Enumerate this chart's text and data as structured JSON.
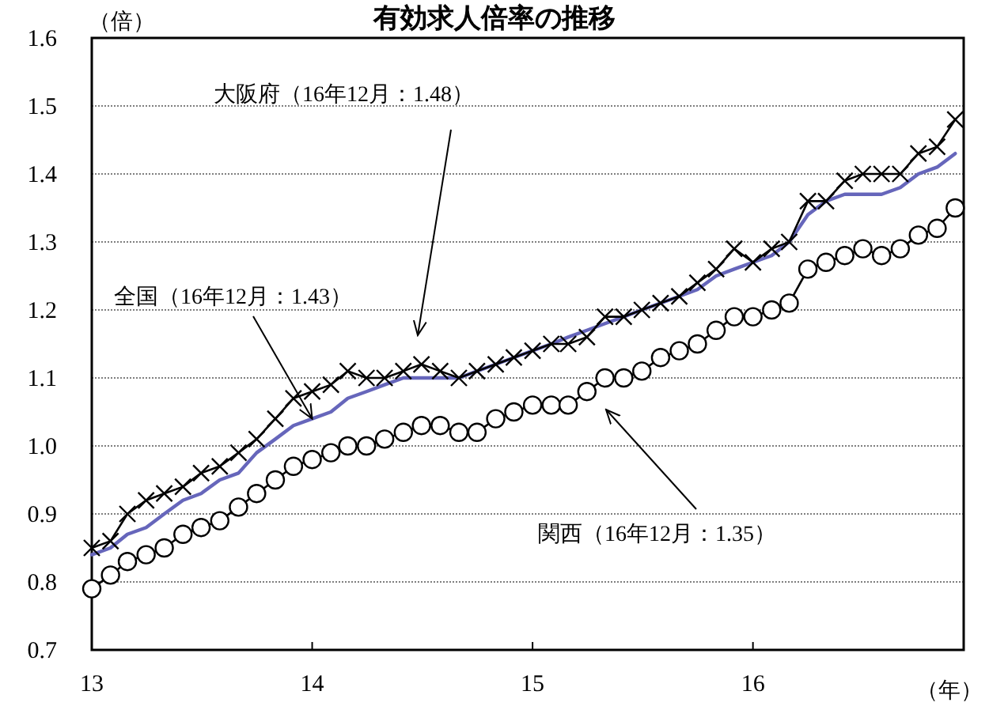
{
  "chart_data": {
    "type": "line",
    "title": "有効求人倍率の推移",
    "ylabel": "（倍）",
    "xlabel": "（年）",
    "x": [
      "2013-01",
      "2013-02",
      "2013-03",
      "2013-04",
      "2013-05",
      "2013-06",
      "2013-07",
      "2013-08",
      "2013-09",
      "2013-10",
      "2013-11",
      "2013-12",
      "2014-01",
      "2014-02",
      "2014-03",
      "2014-04",
      "2014-05",
      "2014-06",
      "2014-07",
      "2014-08",
      "2014-09",
      "2014-10",
      "2014-11",
      "2014-12",
      "2015-01",
      "2015-02",
      "2015-03",
      "2015-04",
      "2015-05",
      "2015-06",
      "2015-07",
      "2015-08",
      "2015-09",
      "2015-10",
      "2015-11",
      "2015-12",
      "2016-01",
      "2016-02",
      "2016-03",
      "2016-04",
      "2016-05",
      "2016-06",
      "2016-07",
      "2016-08",
      "2016-09",
      "2016-10",
      "2016-11",
      "2016-12"
    ],
    "series": [
      {
        "color": "#000000",
        "marker": "cross",
        "values": [
          0.85,
          0.86,
          0.9,
          0.92,
          0.93,
          0.94,
          0.96,
          0.97,
          0.99,
          1.01,
          1.04,
          1.07,
          1.08,
          1.09,
          1.11,
          1.1,
          1.1,
          1.11,
          1.12,
          1.11,
          1.1,
          1.11,
          1.12,
          1.13,
          1.14,
          1.15,
          1.15,
          1.16,
          1.19,
          1.19,
          1.2,
          1.21,
          1.22,
          1.24,
          1.26,
          1.29,
          1.27,
          1.29,
          1.3,
          1.36,
          1.36,
          1.39,
          1.4,
          1.4,
          1.4,
          1.43,
          1.44,
          1.48
        ]
      },
      {
        "color": "#6666bb",
        "marker": "none",
        "values": [
          0.84,
          0.85,
          0.87,
          0.88,
          0.9,
          0.92,
          0.93,
          0.95,
          0.96,
          0.99,
          1.01,
          1.03,
          1.04,
          1.05,
          1.07,
          1.08,
          1.09,
          1.1,
          1.1,
          1.1,
          1.1,
          1.11,
          1.12,
          1.13,
          1.14,
          1.15,
          1.16,
          1.17,
          1.18,
          1.19,
          1.2,
          1.21,
          1.22,
          1.23,
          1.25,
          1.26,
          1.27,
          1.28,
          1.3,
          1.34,
          1.36,
          1.37,
          1.37,
          1.37,
          1.38,
          1.4,
          1.41,
          1.43
        ]
      },
      {
        "color": "#000000",
        "marker": "circle",
        "values": [
          0.79,
          0.81,
          0.83,
          0.84,
          0.85,
          0.87,
          0.88,
          0.89,
          0.91,
          0.93,
          0.95,
          0.97,
          0.98,
          0.99,
          1.0,
          1.0,
          1.01,
          1.02,
          1.03,
          1.03,
          1.02,
          1.02,
          1.04,
          1.05,
          1.06,
          1.06,
          1.06,
          1.08,
          1.1,
          1.1,
          1.11,
          1.13,
          1.14,
          1.15,
          1.17,
          1.19,
          1.19,
          1.2,
          1.21,
          1.26,
          1.27,
          1.28,
          1.29,
          1.28,
          1.29,
          1.31,
          1.32,
          1.35
        ]
      }
    ],
    "xlim": [
      "2013-01",
      "2016-12-15"
    ],
    "xticks": [
      {
        "value": "2013-01",
        "label": "13"
      },
      {
        "value": "2014-01",
        "label": "14"
      },
      {
        "value": "2015-01",
        "label": "15"
      },
      {
        "value": "2016-01",
        "label": "16"
      }
    ],
    "ylim": [
      0.7,
      1.6
    ],
    "yticks": [
      {
        "value": 0.7,
        "label": "0.7"
      },
      {
        "value": 0.8,
        "label": "0.8"
      },
      {
        "value": 0.9,
        "label": "0.9"
      },
      {
        "value": 1.0,
        "label": "1.0"
      },
      {
        "value": 1.1,
        "label": "1.1"
      },
      {
        "value": 1.2,
        "label": "1.2"
      },
      {
        "value": 1.3,
        "label": "1.3"
      },
      {
        "value": 1.4,
        "label": "1.4"
      },
      {
        "value": 1.5,
        "label": "1.5"
      },
      {
        "value": 1.6,
        "label": "1.6"
      }
    ],
    "grid": "y",
    "annotations": [
      "大阪府（16年12月：1.48）",
      {
        "text": "全国（16年12月：1.43）",
        "x": "2014-01",
        "y": 1.04
      },
      "関西（16年12月：1.35）"
    ]
  }
}
